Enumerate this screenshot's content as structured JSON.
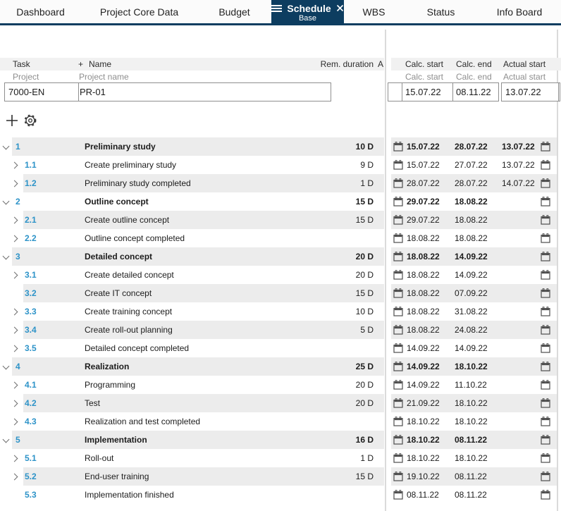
{
  "colors": {
    "navy": "#0d3d60",
    "accent_blue": "#2d93c8",
    "row_stripe": "#ececec",
    "header_band": "#f1f1f1",
    "divider": "#dadada",
    "muted_text": "#8e8e8e",
    "input_border": "#8f8f8f"
  },
  "nav": {
    "tabs": [
      {
        "label": "Dashboard"
      },
      {
        "label": "Project Core Data"
      },
      {
        "label": "Budget"
      },
      {
        "label": "Schedule",
        "active": true,
        "sublabel": "Base"
      },
      {
        "label": "WBS"
      },
      {
        "label": "Status"
      },
      {
        "label": "Info Board"
      }
    ]
  },
  "table": {
    "columns": {
      "task": "Task",
      "plus": "+",
      "name": "Name",
      "rem_duration": "Rem. duration",
      "a_truncated": "A",
      "calc_start": "Calc. start",
      "calc_end": "Calc. end",
      "actual_start": "Actual start"
    },
    "subheader": {
      "project": "Project",
      "project_name": "Project name",
      "calc_start": "Calc. start",
      "calc_end": "Calc. end",
      "actual_start": "Actual start"
    },
    "project_row": {
      "id": "7000-EN",
      "name": "PR-01",
      "calc_start": "15.07.22",
      "calc_end": "08.11.22",
      "actual_start": "13.07.22"
    }
  },
  "toolbar": {
    "add_glyph": "+"
  },
  "tasks": [
    {
      "id": "1",
      "name": "Preliminary study",
      "level": 1,
      "group": true,
      "expander": "down",
      "rem_duration": "10 D",
      "calc_start": "15.07.22",
      "calc_end": "28.07.22",
      "actual_start": "13.07.22"
    },
    {
      "id": "1.1",
      "name": "Create preliminary study",
      "level": 2,
      "group": false,
      "expander": "right",
      "rem_duration": "9 D",
      "calc_start": "15.07.22",
      "calc_end": "27.07.22",
      "actual_start": "13.07.22"
    },
    {
      "id": "1.2",
      "name": "Preliminary study completed",
      "level": 2,
      "group": false,
      "expander": "right",
      "rem_duration": "1 D",
      "calc_start": "28.07.22",
      "calc_end": "28.07.22",
      "actual_start": "14.07.22"
    },
    {
      "id": "2",
      "name": "Outline concept",
      "level": 1,
      "group": true,
      "expander": "down",
      "rem_duration": "15 D",
      "calc_start": "29.07.22",
      "calc_end": "18.08.22",
      "actual_start": ""
    },
    {
      "id": "2.1",
      "name": "Create outline concept",
      "level": 2,
      "group": false,
      "expander": "right",
      "rem_duration": "15 D",
      "calc_start": "29.07.22",
      "calc_end": "18.08.22",
      "actual_start": ""
    },
    {
      "id": "2.2",
      "name": "Outline concept completed",
      "level": 2,
      "group": false,
      "expander": "right",
      "rem_duration": "",
      "calc_start": "18.08.22",
      "calc_end": "18.08.22",
      "actual_start": ""
    },
    {
      "id": "3",
      "name": "Detailed concept",
      "level": 1,
      "group": true,
      "expander": "down",
      "rem_duration": "20 D",
      "calc_start": "18.08.22",
      "calc_end": "14.09.22",
      "actual_start": ""
    },
    {
      "id": "3.1",
      "name": "Create detailed concept",
      "level": 2,
      "group": false,
      "expander": "right",
      "rem_duration": "20 D",
      "calc_start": "18.08.22",
      "calc_end": "14.09.22",
      "actual_start": ""
    },
    {
      "id": "3.2",
      "name": "Create IT concept",
      "level": 2,
      "group": false,
      "expander": "none",
      "rem_duration": "15 D",
      "calc_start": "18.08.22",
      "calc_end": "07.09.22",
      "actual_start": ""
    },
    {
      "id": "3.3",
      "name": "Create training concept",
      "level": 2,
      "group": false,
      "expander": "right",
      "rem_duration": "10 D",
      "calc_start": "18.08.22",
      "calc_end": "31.08.22",
      "actual_start": ""
    },
    {
      "id": "3.4",
      "name": "Create roll-out planning",
      "level": 2,
      "group": false,
      "expander": "right",
      "rem_duration": "5 D",
      "calc_start": "18.08.22",
      "calc_end": "24.08.22",
      "actual_start": ""
    },
    {
      "id": "3.5",
      "name": "Detailed concept completed",
      "level": 2,
      "group": false,
      "expander": "right",
      "rem_duration": "",
      "calc_start": "14.09.22",
      "calc_end": "14.09.22",
      "actual_start": ""
    },
    {
      "id": "4",
      "name": "Realization",
      "level": 1,
      "group": true,
      "expander": "down",
      "rem_duration": "25 D",
      "calc_start": "14.09.22",
      "calc_end": "18.10.22",
      "actual_start": ""
    },
    {
      "id": "4.1",
      "name": "Programming",
      "level": 2,
      "group": false,
      "expander": "right",
      "rem_duration": "20 D",
      "calc_start": "14.09.22",
      "calc_end": "11.10.22",
      "actual_start": ""
    },
    {
      "id": "4.2",
      "name": "Test",
      "level": 2,
      "group": false,
      "expander": "right",
      "rem_duration": "20 D",
      "calc_start": "21.09.22",
      "calc_end": "18.10.22",
      "actual_start": ""
    },
    {
      "id": "4.3",
      "name": "Realization and test completed",
      "level": 2,
      "group": false,
      "expander": "right",
      "rem_duration": "",
      "calc_start": "18.10.22",
      "calc_end": "18.10.22",
      "actual_start": ""
    },
    {
      "id": "5",
      "name": "Implementation",
      "level": 1,
      "group": true,
      "expander": "down",
      "rem_duration": "16 D",
      "calc_start": "18.10.22",
      "calc_end": "08.11.22",
      "actual_start": ""
    },
    {
      "id": "5.1",
      "name": "Roll-out",
      "level": 2,
      "group": false,
      "expander": "right",
      "rem_duration": "1 D",
      "calc_start": "18.10.22",
      "calc_end": "18.10.22",
      "actual_start": ""
    },
    {
      "id": "5.2",
      "name": "End-user training",
      "level": 2,
      "group": false,
      "expander": "right",
      "rem_duration": "15 D",
      "calc_start": "19.10.22",
      "calc_end": "08.11.22",
      "actual_start": ""
    },
    {
      "id": "5.3",
      "name": "Implementation finished",
      "level": 2,
      "group": false,
      "expander": "none",
      "rem_duration": "",
      "calc_start": "08.11.22",
      "calc_end": "08.11.22",
      "actual_start": ""
    }
  ]
}
